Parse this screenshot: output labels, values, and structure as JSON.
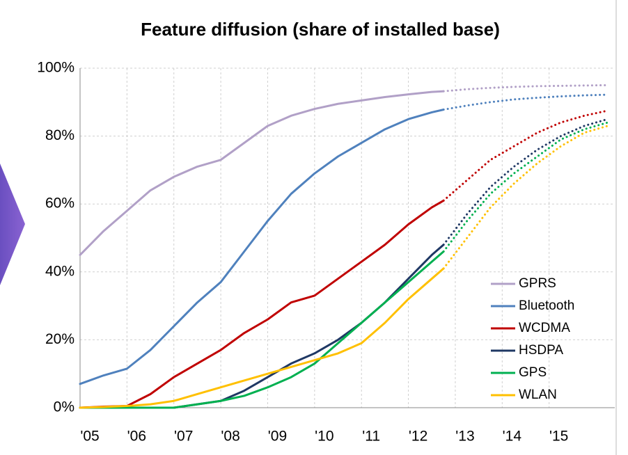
{
  "chart_data": {
    "type": "line",
    "title": "Feature diffusion (share of installed base)",
    "x": [
      2005,
      2005.5,
      2006,
      2006.5,
      2007,
      2007.5,
      2008,
      2008.5,
      2009,
      2009.5,
      2010,
      2010.5,
      2011,
      2011.5,
      2012,
      2012.5,
      2012.75,
      2013.25,
      2013.75,
      2014.25,
      2014.75,
      2015.25,
      2015.75,
      2016.25
    ],
    "xlim": [
      2005,
      2016.4
    ],
    "xticks": [
      {
        "value": 2005,
        "label": "'05"
      },
      {
        "value": 2006,
        "label": "'06"
      },
      {
        "value": 2007,
        "label": "'07"
      },
      {
        "value": 2008,
        "label": "'08"
      },
      {
        "value": 2009,
        "label": "'09"
      },
      {
        "value": 2010,
        "label": "'10"
      },
      {
        "value": 2011,
        "label": "'11"
      },
      {
        "value": 2012,
        "label": "'12"
      },
      {
        "value": 2013,
        "label": "'13"
      },
      {
        "value": 2014,
        "label": "'14"
      },
      {
        "value": 2015,
        "label": "'15"
      }
    ],
    "ylim": [
      0,
      100
    ],
    "yticks": [
      {
        "value": 0,
        "label": "0%"
      },
      {
        "value": 20,
        "label": "20%"
      },
      {
        "value": 40,
        "label": "40%"
      },
      {
        "value": 60,
        "label": "60%"
      },
      {
        "value": 80,
        "label": "80%"
      },
      {
        "value": 100,
        "label": "100%"
      }
    ],
    "grid": true,
    "legend": "right",
    "series": [
      {
        "name": "GPRS",
        "color": "#b1a0c7",
        "values": [
          45,
          52,
          58,
          64,
          68,
          71,
          73,
          78,
          83,
          86,
          88,
          89.5,
          90.5,
          91.5,
          92.3,
          93,
          93.2,
          null,
          null,
          null,
          null,
          null,
          null,
          null
        ],
        "projection": [
          null,
          null,
          null,
          null,
          null,
          null,
          null,
          null,
          null,
          null,
          null,
          null,
          null,
          null,
          null,
          null,
          93.2,
          93.8,
          94.2,
          94.5,
          94.7,
          94.8,
          94.9,
          95
        ]
      },
      {
        "name": "Bluetooth",
        "color": "#4f81bd",
        "values": [
          7,
          9.5,
          11.5,
          17,
          24,
          31,
          37,
          46,
          55,
          63,
          69,
          74,
          78,
          82,
          85,
          87,
          87.8,
          null,
          null,
          null,
          null,
          null,
          null,
          null
        ],
        "projection": [
          null,
          null,
          null,
          null,
          null,
          null,
          null,
          null,
          null,
          null,
          null,
          null,
          null,
          null,
          null,
          null,
          87.8,
          89,
          90,
          90.8,
          91.3,
          91.7,
          92,
          92.2
        ]
      },
      {
        "name": "WCDMA",
        "color": "#c00000",
        "values": [
          0,
          0.3,
          0.5,
          4,
          9,
          13,
          17,
          22,
          26,
          31,
          33,
          38,
          43,
          48,
          54,
          59,
          61,
          null,
          null,
          null,
          null,
          null,
          null,
          null
        ],
        "projection": [
          null,
          null,
          null,
          null,
          null,
          null,
          null,
          null,
          null,
          null,
          null,
          null,
          null,
          null,
          null,
          null,
          61,
          67,
          73,
          77,
          81,
          84,
          86,
          87.5
        ]
      },
      {
        "name": "HSDPA",
        "color": "#1f3864",
        "values": [
          0,
          0,
          0,
          0,
          0,
          1,
          2,
          5,
          9,
          13,
          16,
          20,
          25,
          31,
          38,
          45,
          48,
          null,
          null,
          null,
          null,
          null,
          null,
          null
        ],
        "projection": [
          null,
          null,
          null,
          null,
          null,
          null,
          null,
          null,
          null,
          null,
          null,
          null,
          null,
          null,
          null,
          null,
          48,
          57,
          65,
          71,
          76,
          80,
          83,
          85
        ]
      },
      {
        "name": "GPS",
        "color": "#00b050",
        "values": [
          0,
          0,
          0,
          0,
          0,
          1,
          2,
          3.5,
          6,
          9,
          13,
          19,
          25,
          31,
          37,
          43,
          46,
          null,
          null,
          null,
          null,
          null,
          null,
          null
        ],
        "projection": [
          null,
          null,
          null,
          null,
          null,
          null,
          null,
          null,
          null,
          null,
          null,
          null,
          null,
          null,
          null,
          null,
          46,
          55,
          63,
          69,
          74,
          79,
          82,
          84
        ]
      },
      {
        "name": "WLAN",
        "color": "#ffc000",
        "values": [
          0,
          0.2,
          0.5,
          1,
          2,
          4,
          6,
          8,
          10,
          12,
          14,
          16,
          19,
          25,
          32,
          38,
          41,
          null,
          null,
          null,
          null,
          null,
          null,
          null
        ],
        "projection": [
          null,
          null,
          null,
          null,
          null,
          null,
          null,
          null,
          null,
          null,
          null,
          null,
          null,
          null,
          null,
          null,
          41,
          50,
          59,
          66,
          72,
          77,
          81,
          83
        ]
      }
    ]
  }
}
